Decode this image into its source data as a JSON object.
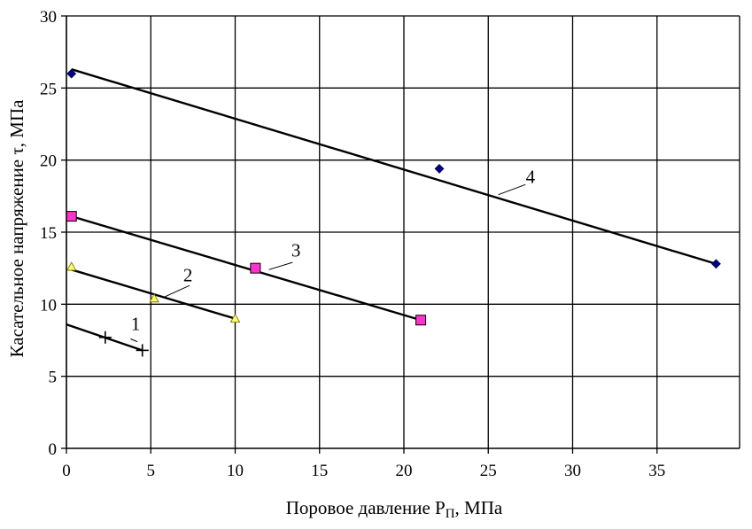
{
  "chart_data": {
    "type": "scatter",
    "title": "",
    "xlabel": "Поровое давление P",
    "xlabel_sub": "П",
    "xlabel_suffix": ", МПа",
    "ylabel": "Касательное напряжение τ, МПа",
    "xlim": [
      0,
      40
    ],
    "ylim": [
      0,
      30
    ],
    "x_ticks": [
      0,
      5,
      10,
      15,
      20,
      25,
      30,
      35
    ],
    "y_ticks": [
      0,
      5,
      10,
      15,
      20,
      25,
      30
    ],
    "grid": true,
    "legend": "none",
    "series": [
      {
        "label": "1",
        "marker": "plus",
        "color": "#000000",
        "points": [
          {
            "x": 2.3,
            "y": 7.7
          },
          {
            "x": 4.5,
            "y": 6.8
          }
        ],
        "fit": {
          "x": [
            0,
            4.5
          ],
          "y": [
            8.6,
            6.8
          ]
        }
      },
      {
        "label": "2",
        "marker": "triangle",
        "color": "#ffff66",
        "points": [
          {
            "x": 0.3,
            "y": 12.6
          },
          {
            "x": 5.2,
            "y": 10.4
          },
          {
            "x": 10.0,
            "y": 9.0
          }
        ],
        "fit": {
          "x": [
            0.3,
            10.0
          ],
          "y": [
            12.4,
            9.0
          ]
        }
      },
      {
        "label": "3",
        "marker": "square",
        "color": "#ff33cc",
        "points": [
          {
            "x": 0.3,
            "y": 16.1
          },
          {
            "x": 11.2,
            "y": 12.5
          },
          {
            "x": 21.0,
            "y": 8.9
          }
        ],
        "fit": {
          "x": [
            0.3,
            21.0
          ],
          "y": [
            16.1,
            8.9
          ]
        }
      },
      {
        "label": "4",
        "marker": "diamond",
        "color": "#000080",
        "points": [
          {
            "x": 0.3,
            "y": 26.0
          },
          {
            "x": 22.1,
            "y": 19.4
          },
          {
            "x": 38.5,
            "y": 12.8
          }
        ],
        "fit": {
          "x": [
            0.3,
            38.5
          ],
          "y": [
            26.3,
            12.8
          ]
        }
      }
    ]
  }
}
